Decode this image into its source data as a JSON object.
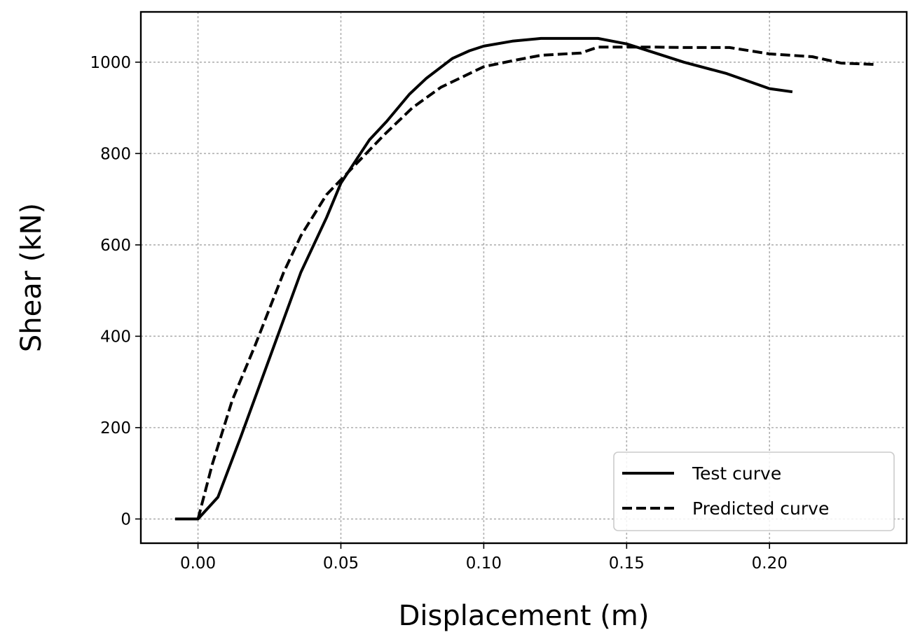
{
  "chart_data": {
    "type": "line",
    "title": "",
    "xlabel": "Displacement (m)",
    "ylabel": "Shear (kN)",
    "xlim": [
      -0.02,
      0.248
    ],
    "ylim": [
      -53,
      1110
    ],
    "grid": true,
    "legend_position": "lower-right",
    "x_ticks": [
      {
        "value": 0.0,
        "label": "0.00"
      },
      {
        "value": 0.05,
        "label": "0.05"
      },
      {
        "value": 0.1,
        "label": "0.10"
      },
      {
        "value": 0.15,
        "label": "0.15"
      },
      {
        "value": 0.2,
        "label": "0.20"
      }
    ],
    "y_ticks": [
      {
        "value": 0,
        "label": "0"
      },
      {
        "value": 200,
        "label": "200"
      },
      {
        "value": 400,
        "label": "400"
      },
      {
        "value": 600,
        "label": "600"
      },
      {
        "value": 800,
        "label": "800"
      },
      {
        "value": 1000,
        "label": "1000"
      }
    ],
    "series": [
      {
        "name": "Test curve",
        "style": "solid",
        "color": "#000000",
        "points": [
          [
            -0.008,
            0
          ],
          [
            0.0,
            0
          ],
          [
            0.007,
            48
          ],
          [
            0.015,
            180
          ],
          [
            0.022,
            300
          ],
          [
            0.036,
            540
          ],
          [
            0.045,
            660
          ],
          [
            0.05,
            735
          ],
          [
            0.06,
            830
          ],
          [
            0.066,
            870
          ],
          [
            0.074,
            930
          ],
          [
            0.08,
            965
          ],
          [
            0.089,
            1008
          ],
          [
            0.095,
            1025
          ],
          [
            0.1,
            1035
          ],
          [
            0.11,
            1046
          ],
          [
            0.12,
            1052
          ],
          [
            0.13,
            1052
          ],
          [
            0.14,
            1052
          ],
          [
            0.15,
            1040
          ],
          [
            0.16,
            1020
          ],
          [
            0.17,
            1000
          ],
          [
            0.185,
            975
          ],
          [
            0.2,
            942
          ],
          [
            0.208,
            935
          ]
        ]
      },
      {
        "name": "Predicted curve",
        "style": "dashed",
        "color": "#000000",
        "points": [
          [
            0.0,
            0
          ],
          [
            0.005,
            120
          ],
          [
            0.012,
            260
          ],
          [
            0.02,
            380
          ],
          [
            0.03,
            540
          ],
          [
            0.036,
            620
          ],
          [
            0.045,
            710
          ],
          [
            0.055,
            775
          ],
          [
            0.065,
            840
          ],
          [
            0.075,
            900
          ],
          [
            0.085,
            945
          ],
          [
            0.1,
            990
          ],
          [
            0.11,
            1003
          ],
          [
            0.12,
            1015
          ],
          [
            0.134,
            1020
          ],
          [
            0.14,
            1033
          ],
          [
            0.16,
            1033
          ],
          [
            0.17,
            1032
          ],
          [
            0.186,
            1032
          ],
          [
            0.2,
            1018
          ],
          [
            0.215,
            1012
          ],
          [
            0.225,
            998
          ],
          [
            0.237,
            995
          ]
        ]
      }
    ]
  }
}
